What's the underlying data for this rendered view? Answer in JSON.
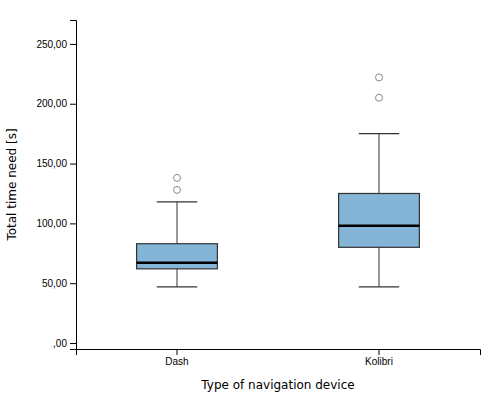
{
  "chart_data": {
    "type": "box",
    "categories": [
      "Dash",
      "Kolibri"
    ],
    "boxes": [
      {
        "median": 67,
        "q1": 62,
        "q3": 83,
        "whisker_low": 47,
        "whisker_high": 118,
        "outliers": [
          128,
          138
        ]
      },
      {
        "median": 98,
        "q1": 80,
        "q3": 125,
        "whisker_low": 47,
        "whisker_high": 175,
        "outliers": [
          205,
          222
        ]
      }
    ],
    "ylabel": "Total time need [s]",
    "xlabel": "Type of navigation device",
    "ylim": [
      -5,
      270
    ],
    "yticks": [
      {
        "value": 0,
        "label": ",00"
      },
      {
        "value": 50,
        "label": "50,00"
      },
      {
        "value": 100,
        "label": "100,00"
      },
      {
        "value": 150,
        "label": "150,00"
      },
      {
        "value": 200,
        "label": "200,00"
      },
      {
        "value": 250,
        "label": "250,00"
      }
    ]
  }
}
